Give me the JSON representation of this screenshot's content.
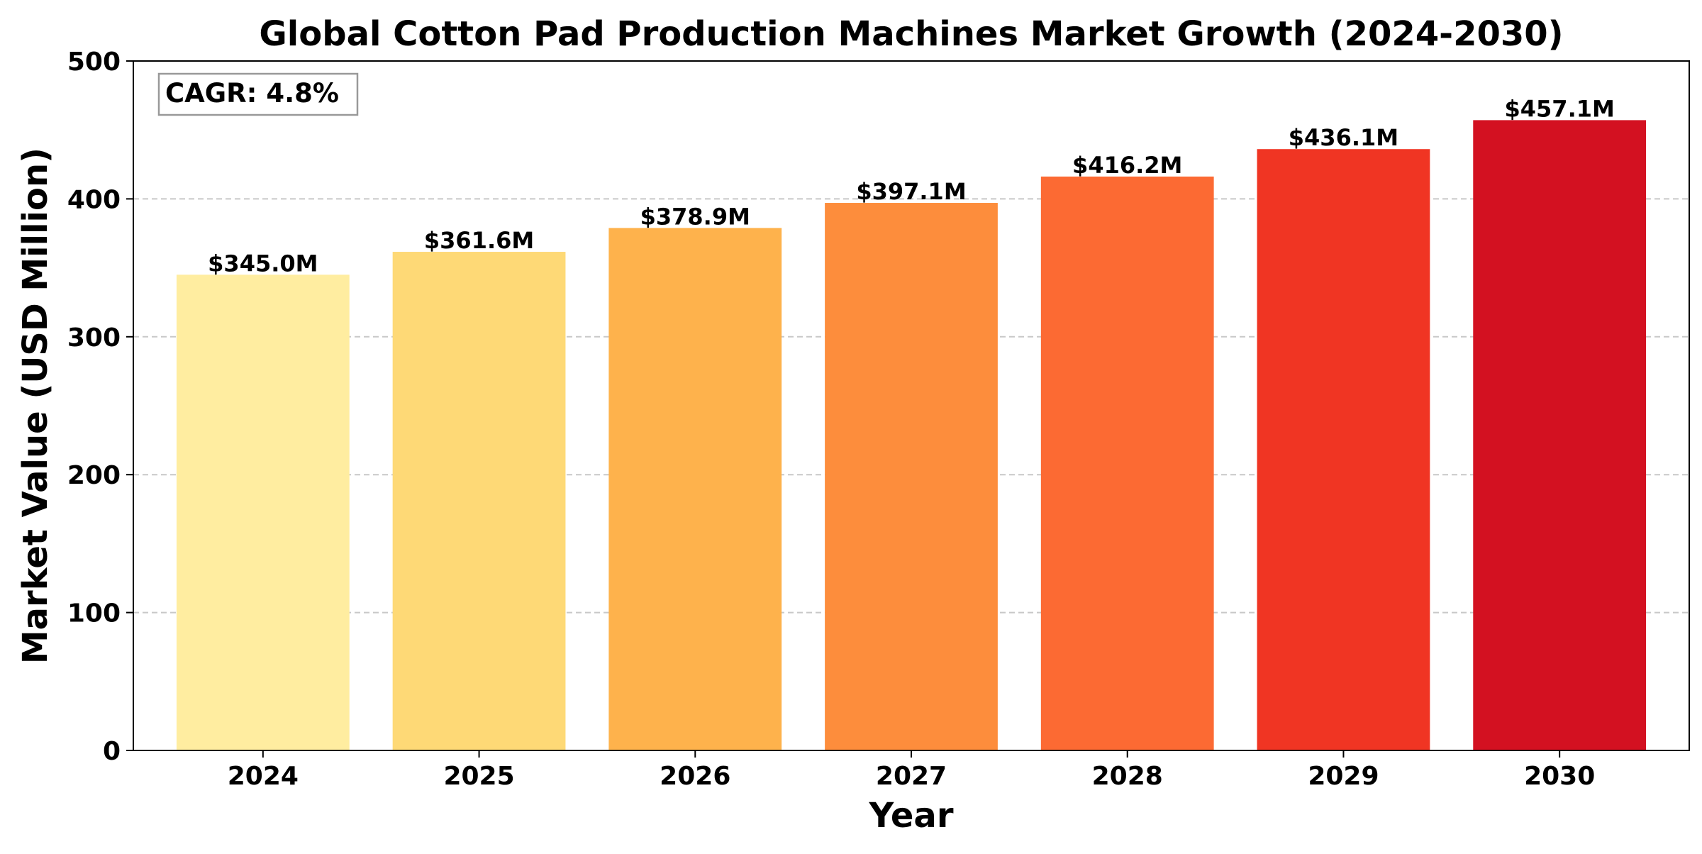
{
  "chart_data": {
    "type": "bar",
    "title": "Global Cotton Pad Production Machines Market Growth (2024-2030)",
    "xlabel": "Year",
    "ylabel": "Market Value (USD Million)",
    "categories": [
      "2024",
      "2025",
      "2026",
      "2027",
      "2028",
      "2029",
      "2030"
    ],
    "values": [
      345.0,
      361.6,
      378.9,
      397.1,
      416.2,
      436.1,
      457.1
    ],
    "value_labels": [
      "$345.0M",
      "$361.6M",
      "$378.9M",
      "$397.1M",
      "$416.2M",
      "$436.1M",
      "$457.1M"
    ],
    "bar_colors": [
      "#ffeda0",
      "#fed976",
      "#feb24c",
      "#fd8d3c",
      "#fc6a33",
      "#f03523",
      "#d31121"
    ],
    "ylim": [
      0,
      500
    ],
    "yticks": [
      0,
      100,
      200,
      300,
      400,
      500
    ],
    "grid": "horizontal dashed",
    "annotation": "CAGR: 4.8%",
    "annotation_position": "top-left"
  }
}
